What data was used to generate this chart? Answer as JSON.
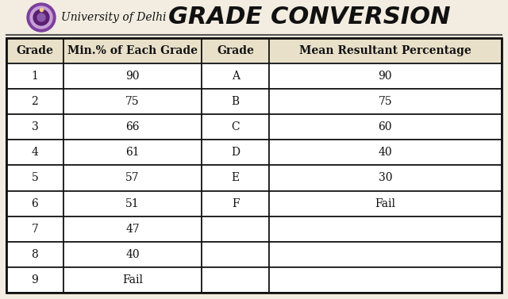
{
  "title": "GRADE CONVERSION",
  "university": "University of Delhi",
  "bg_color": "#f2ede0",
  "cell_bg": "#ffffff",
  "header_bg": "#e8e0c8",
  "border_color": "#111111",
  "text_color": "#111111",
  "col1_header": "Grade",
  "col2_header": "Min.% of Each Grade",
  "col3_header": "Grade",
  "col4_header": "Mean Resultant Percentage",
  "left_grades": [
    "1",
    "2",
    "3",
    "4",
    "5",
    "6",
    "7",
    "8",
    "9"
  ],
  "left_pct": [
    "90",
    "75",
    "66",
    "61",
    "57",
    "51",
    "47",
    "40",
    "Fail"
  ],
  "right_grades": [
    "A",
    "B",
    "C",
    "D",
    "E",
    "F",
    "",
    "",
    ""
  ],
  "right_pct": [
    "90",
    "75",
    "60",
    "40",
    "30",
    "Fail",
    "",
    "",
    ""
  ],
  "logo_color_outer": "#7b3f9e",
  "logo_color_mid": "#c8a0d8",
  "logo_color_inner": "#5a2070",
  "logo_color_center": "#8b5aaa",
  "title_fontsize": 22,
  "header_fontsize": 10,
  "cell_fontsize": 10,
  "uni_fontsize": 10
}
